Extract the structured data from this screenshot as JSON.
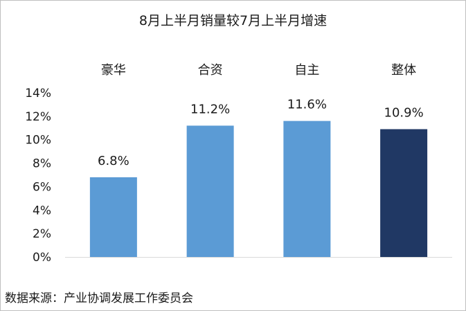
{
  "chart_data": {
    "type": "bar",
    "title": "8月上半月销量较7月上半月增速",
    "categories": [
      "豪华",
      "合资",
      "自主",
      "整体"
    ],
    "values": [
      6.8,
      11.2,
      11.6,
      10.9
    ],
    "value_labels": [
      "6.8%",
      "11.2%",
      "11.6%",
      "10.9%"
    ],
    "bar_colors": [
      "#5b9bd5",
      "#5b9bd5",
      "#5b9bd5",
      "#203864"
    ],
    "category_label_position": "top",
    "ylim": [
      0,
      14
    ],
    "y_ticks": [
      0,
      2,
      4,
      6,
      8,
      10,
      12,
      14
    ],
    "y_tick_labels": [
      "0%",
      "2%",
      "4%",
      "6%",
      "8%",
      "10%",
      "12%",
      "14%"
    ],
    "xlabel": "",
    "ylabel": "",
    "grid": false,
    "legend": "none"
  },
  "source_note": "数据来源：产业协调发展工作委员会"
}
